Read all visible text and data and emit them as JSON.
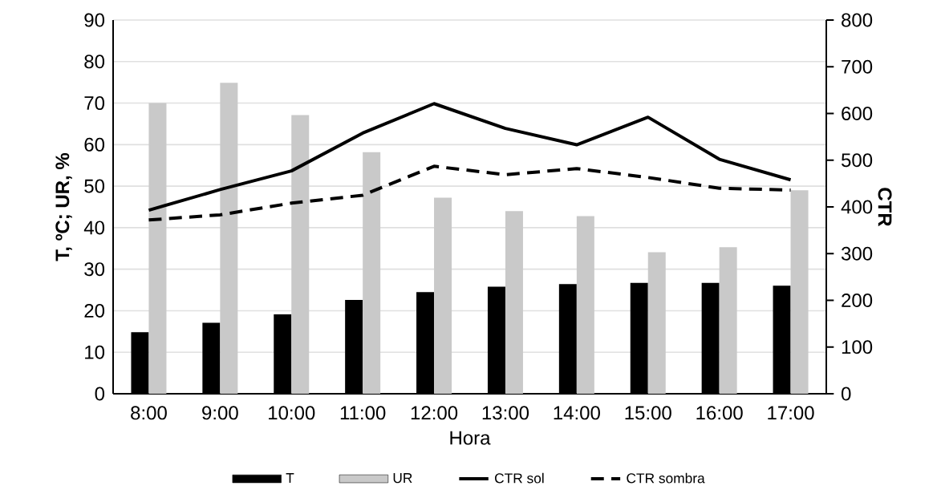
{
  "chart_data": {
    "type": "bar",
    "xlabel": "Hora",
    "ylabel": "T, ºC; UR, %",
    "y2label": "CTR",
    "categories": [
      "8:00",
      "9:00",
      "10:00",
      "11:00",
      "12:00",
      "13:00",
      "14:00",
      "15:00",
      "16:00",
      "17:00"
    ],
    "series": [
      {
        "name": "T",
        "color": "#000000",
        "values": [
          14.8,
          17.1,
          19.1,
          22.6,
          24.5,
          25.8,
          26.4,
          26.7,
          26.7,
          26.0
        ]
      },
      {
        "name": "UR",
        "color": "#c9c9c9",
        "values": [
          70.0,
          74.9,
          67.1,
          58.2,
          47.2,
          44.0,
          42.8,
          34.1,
          35.3,
          49.0
        ]
      },
      {
        "name": "CTR sol",
        "type": "line",
        "axis": "y2",
        "color": "#000000",
        "line_style": "solid",
        "values": [
          393,
          437,
          477,
          558,
          621,
          568,
          533,
          592,
          502,
          458
        ]
      },
      {
        "name": "CTR sombra",
        "type": "line",
        "axis": "y2",
        "color": "#000000",
        "line_style": "dashed",
        "values": [
          372,
          383,
          408,
          425,
          487,
          469,
          482,
          463,
          440,
          436
        ]
      }
    ],
    "ylim": [
      0,
      90
    ],
    "yticks": [
      0,
      10,
      20,
      30,
      40,
      50,
      60,
      70,
      80,
      90
    ],
    "y2lim": [
      0,
      800
    ],
    "y2ticks": [
      0,
      100,
      200,
      300,
      400,
      500,
      600,
      700,
      800
    ],
    "grid": "y",
    "legend": "bottom"
  }
}
